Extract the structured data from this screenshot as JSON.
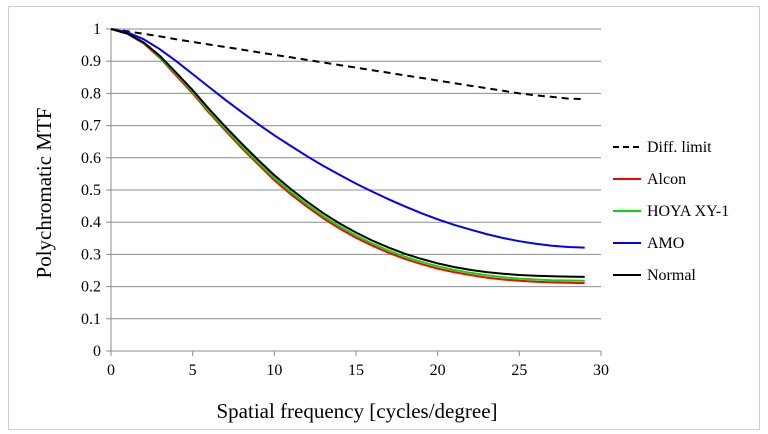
{
  "chart_data": {
    "type": "line",
    "xlabel": "Spatial frequency [cycles/degree]",
    "ylabel": "Polychromatic MTF",
    "xlim": [
      0,
      30
    ],
    "ylim": [
      0,
      1
    ],
    "xticks": [
      0,
      5,
      10,
      15,
      20,
      25,
      30
    ],
    "yticks": [
      0,
      0.1,
      0.2,
      0.3,
      0.4,
      0.5,
      0.6,
      0.7,
      0.8,
      0.9,
      1
    ],
    "grid": "horizontal",
    "legend_position": "right",
    "x": [
      0,
      1,
      2,
      3,
      4,
      5,
      6,
      7,
      8,
      9,
      10,
      11,
      12,
      13,
      14,
      15,
      16,
      17,
      18,
      19,
      20,
      21,
      22,
      23,
      24,
      25,
      26,
      27,
      28,
      29
    ],
    "series": [
      {
        "name": "Diff. limit",
        "color": "#000000",
        "dash": "dashed",
        "values": [
          1.0,
          0.993,
          0.985,
          0.977,
          0.968,
          0.96,
          0.952,
          0.944,
          0.936,
          0.928,
          0.92,
          0.912,
          0.904,
          0.896,
          0.888,
          0.88,
          0.872,
          0.864,
          0.856,
          0.848,
          0.84,
          0.832,
          0.824,
          0.816,
          0.808,
          0.8,
          0.794,
          0.789,
          0.784,
          0.782
        ]
      },
      {
        "name": "Alcon",
        "color": "#ff0000",
        "dash": "solid",
        "values": [
          1.0,
          0.985,
          0.955,
          0.91,
          0.855,
          0.8,
          0.74,
          0.685,
          0.63,
          0.58,
          0.53,
          0.487,
          0.448,
          0.412,
          0.38,
          0.352,
          0.327,
          0.305,
          0.286,
          0.27,
          0.256,
          0.245,
          0.236,
          0.228,
          0.222,
          0.218,
          0.215,
          0.213,
          0.212,
          0.211
        ]
      },
      {
        "name": "HOYA XY-1",
        "color": "#00dd00",
        "dash": "solid",
        "values": [
          1.0,
          0.986,
          0.957,
          0.913,
          0.86,
          0.805,
          0.745,
          0.69,
          0.636,
          0.586,
          0.537,
          0.494,
          0.455,
          0.419,
          0.387,
          0.359,
          0.334,
          0.312,
          0.293,
          0.277,
          0.263,
          0.252,
          0.243,
          0.235,
          0.229,
          0.225,
          0.222,
          0.22,
          0.219,
          0.218
        ]
      },
      {
        "name": "AMO",
        "color": "#0000ff",
        "dash": "solid",
        "values": [
          1.0,
          0.99,
          0.968,
          0.937,
          0.9,
          0.86,
          0.82,
          0.78,
          0.742,
          0.705,
          0.67,
          0.637,
          0.605,
          0.575,
          0.547,
          0.52,
          0.495,
          0.471,
          0.449,
          0.428,
          0.409,
          0.392,
          0.377,
          0.363,
          0.351,
          0.341,
          0.333,
          0.327,
          0.323,
          0.321
        ]
      },
      {
        "name": "Normal",
        "color": "#000000",
        "dash": "solid",
        "values": [
          1.0,
          0.986,
          0.958,
          0.916,
          0.864,
          0.81,
          0.752,
          0.697,
          0.644,
          0.594,
          0.546,
          0.503,
          0.464,
          0.428,
          0.396,
          0.368,
          0.343,
          0.321,
          0.302,
          0.286,
          0.272,
          0.261,
          0.252,
          0.245,
          0.24,
          0.236,
          0.234,
          0.232,
          0.231,
          0.23
        ]
      }
    ]
  }
}
